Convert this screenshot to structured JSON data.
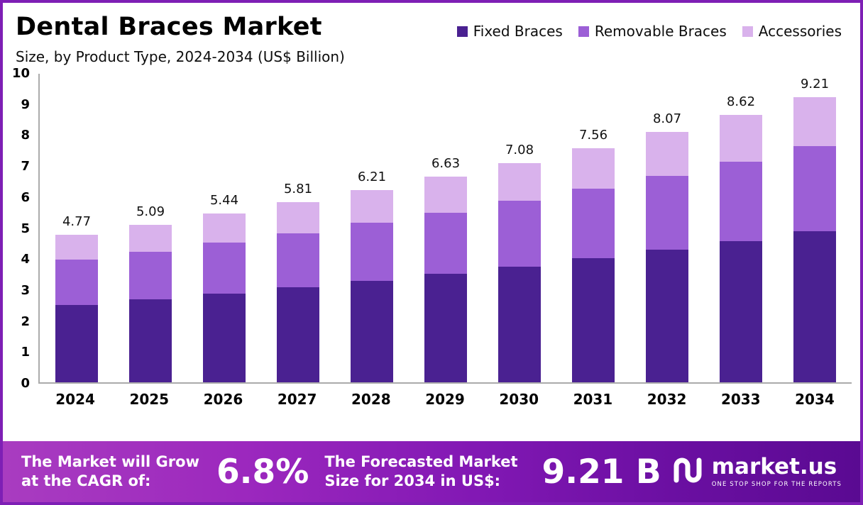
{
  "title": "Dental Braces Market",
  "subtitle": "Size, by Product Type, 2024-2034 (US$ Billion)",
  "legend": [
    {
      "label": "Fixed Braces",
      "color": "#4a2191"
    },
    {
      "label": "Removable Braces",
      "color": "#9c5fd6"
    },
    {
      "label": "Accessories",
      "color": "#d9b2ec"
    }
  ],
  "chart_data": {
    "type": "bar",
    "stacked": true,
    "title": "Dental Braces Market Size, by Product Type, 2024-2034 (US$ Billion)",
    "categories": [
      "2024",
      "2025",
      "2026",
      "2027",
      "2028",
      "2029",
      "2030",
      "2031",
      "2032",
      "2033",
      "2034"
    ],
    "series": [
      {
        "name": "Fixed Braces",
        "color": "#4a2191",
        "values": [
          2.5,
          2.68,
          2.87,
          3.06,
          3.28,
          3.5,
          3.74,
          4.0,
          4.27,
          4.56,
          4.88
        ]
      },
      {
        "name": "Removable Braces",
        "color": "#9c5fd6",
        "values": [
          1.45,
          1.52,
          1.63,
          1.74,
          1.86,
          1.98,
          2.11,
          2.25,
          2.4,
          2.56,
          2.73
        ]
      },
      {
        "name": "Accessories",
        "color": "#d9b2ec",
        "values": [
          0.82,
          0.89,
          0.94,
          1.01,
          1.07,
          1.15,
          1.23,
          1.31,
          1.4,
          1.5,
          1.6
        ]
      }
    ],
    "totals": [
      4.77,
      5.09,
      5.44,
      5.81,
      6.21,
      6.63,
      7.08,
      7.56,
      8.07,
      8.62,
      9.21
    ],
    "xlabel": "",
    "ylabel": "",
    "ylim": [
      0,
      10
    ],
    "yticks": [
      0,
      1,
      2,
      3,
      4,
      5,
      6,
      7,
      8,
      9,
      10
    ],
    "grid": false,
    "legend_position": "top-right"
  },
  "footer": {
    "cagr_label": "The Market will Grow\nat the CAGR of:",
    "cagr_value": "6.8%",
    "forecast_label": "The Forecasted Market\nSize for 2034 in US$:",
    "forecast_value": "9.21 B",
    "brand": "market.us",
    "brand_tagline": "ONE STOP SHOP FOR THE REPORTS"
  },
  "colors": {
    "frame_border": "#7e1fb5",
    "banner_gradient_start": "#a93cc0",
    "banner_gradient_end": "#5a0a92",
    "axis_line": "#ababab"
  }
}
